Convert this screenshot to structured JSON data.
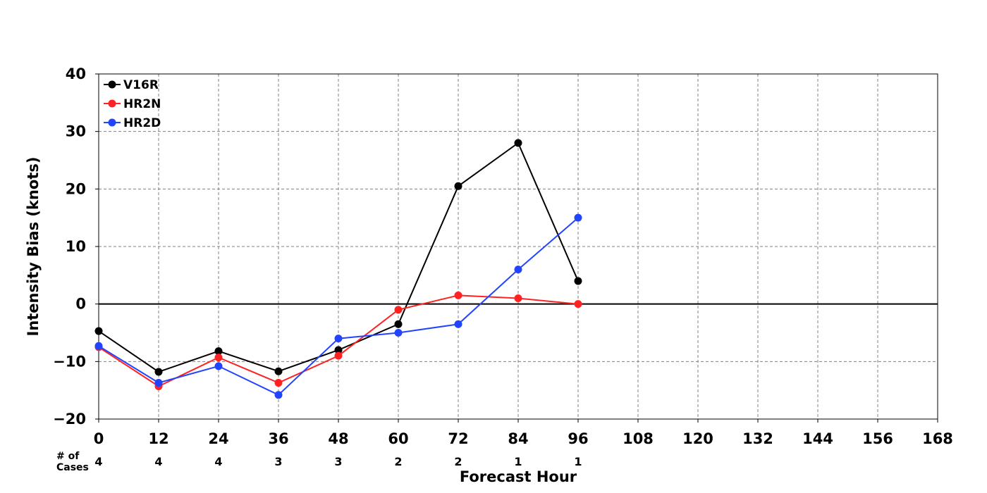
{
  "chart_data": {
    "type": "line",
    "title": "",
    "xlabel": "Forecast Hour",
    "ylabel": "Intensity Bias (knots)",
    "xlim": [
      0,
      168
    ],
    "ylim": [
      -20,
      40
    ],
    "x_ticks": [
      "0",
      "12",
      "24",
      "36",
      "48",
      "60",
      "72",
      "84",
      "96",
      "108",
      "120",
      "132",
      "144",
      "156",
      "168"
    ],
    "y_ticks": [
      "40",
      "30",
      "20",
      "10",
      "0",
      "−10",
      "−20"
    ],
    "grid": true,
    "legend_position": "top-left",
    "cases_label": "# of\nCases",
    "cases": [
      {
        "x": 0,
        "n": "4"
      },
      {
        "x": 12,
        "n": "4"
      },
      {
        "x": 24,
        "n": "4"
      },
      {
        "x": 36,
        "n": "3"
      },
      {
        "x": 48,
        "n": "3"
      },
      {
        "x": 60,
        "n": "2"
      },
      {
        "x": 72,
        "n": "2"
      },
      {
        "x": 84,
        "n": "1"
      },
      {
        "x": 96,
        "n": "1"
      }
    ],
    "x": [
      0,
      12,
      24,
      36,
      48,
      60,
      72,
      84,
      96
    ],
    "series": [
      {
        "name": "V16R",
        "color": "#000000",
        "values": [
          -4.7,
          -11.8,
          -8.2,
          -11.7,
          -8.0,
          -3.5,
          20.5,
          28.0,
          4.0
        ]
      },
      {
        "name": "HR2N",
        "color": "#ff2222",
        "values": [
          -7.5,
          -14.3,
          -9.3,
          -13.7,
          -9.0,
          -1.0,
          1.5,
          1.0,
          0.0
        ]
      },
      {
        "name": "HR2D",
        "color": "#2244ff",
        "values": [
          -7.3,
          -13.7,
          -10.8,
          -15.8,
          -6.0,
          -5.0,
          -3.5,
          6.0,
          15.0
        ]
      }
    ]
  }
}
